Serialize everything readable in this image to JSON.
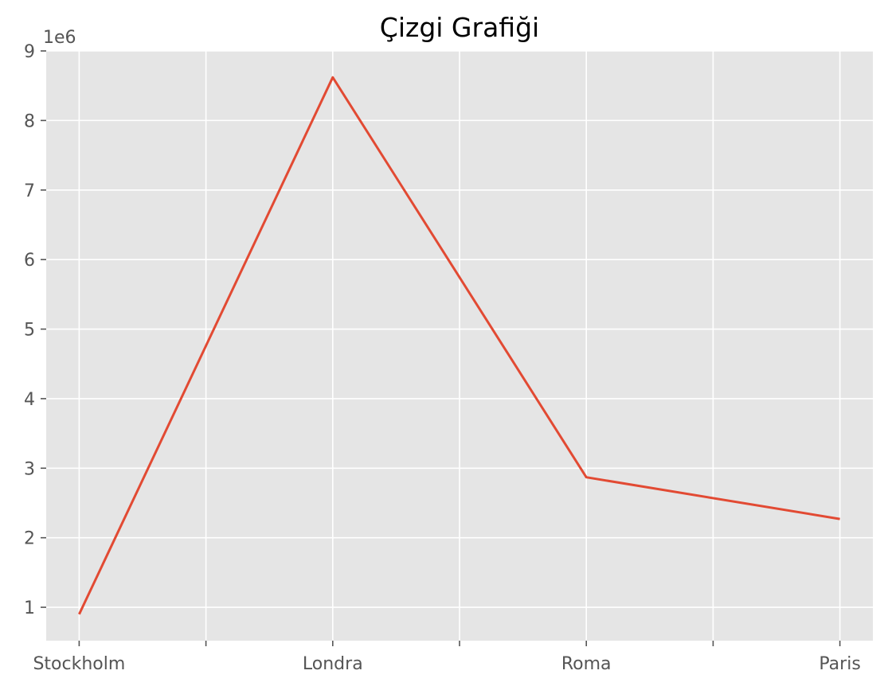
{
  "chart_data": {
    "type": "line",
    "title": "Çizgi Grafiği",
    "xlabel": "",
    "ylabel": "",
    "categories": [
      "Stockholm",
      "Londra",
      "Roma",
      "Paris"
    ],
    "values": [
      900000.0,
      8620000.0,
      2870000.0,
      2270000.0
    ],
    "y_offset_label": "1e6",
    "y_ticks": [
      1,
      2,
      3,
      4,
      5,
      6,
      7,
      8,
      9
    ],
    "ylim": [
      520000.0,
      9000000.0
    ],
    "grid": true,
    "colors": {
      "line": "#E24A33",
      "plot_background": "#E5E5E5",
      "grid": "#FFFFFF",
      "tick_label": "#555555"
    }
  }
}
